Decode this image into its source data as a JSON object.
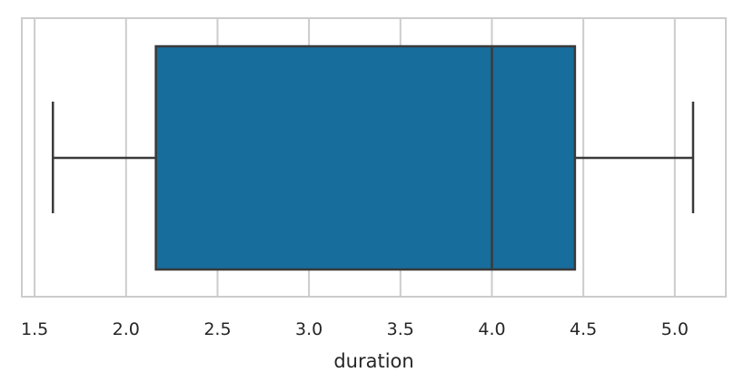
{
  "chart_data": {
    "type": "box",
    "orientation": "horizontal",
    "xlabel": "duration",
    "ylabel": "",
    "title": "",
    "xlim": [
      1.43,
      5.279
    ],
    "xticks": [
      1.5,
      2.0,
      2.5,
      3.0,
      3.5,
      4.0,
      4.5,
      5.0
    ],
    "xtick_labels": [
      "1.5",
      "2.0",
      "2.5",
      "3.0",
      "3.5",
      "4.0",
      "4.5",
      "5.0"
    ],
    "grid": "vertical",
    "box": {
      "whisker_low": 1.6,
      "q1": 2.163,
      "median": 4.0,
      "q3": 4.454,
      "whisker_high": 5.1
    },
    "colors": {
      "box_fill": "#176d9c",
      "line": "#3a3a3a",
      "grid": "#cccccc",
      "frame": "#cccccc"
    }
  }
}
